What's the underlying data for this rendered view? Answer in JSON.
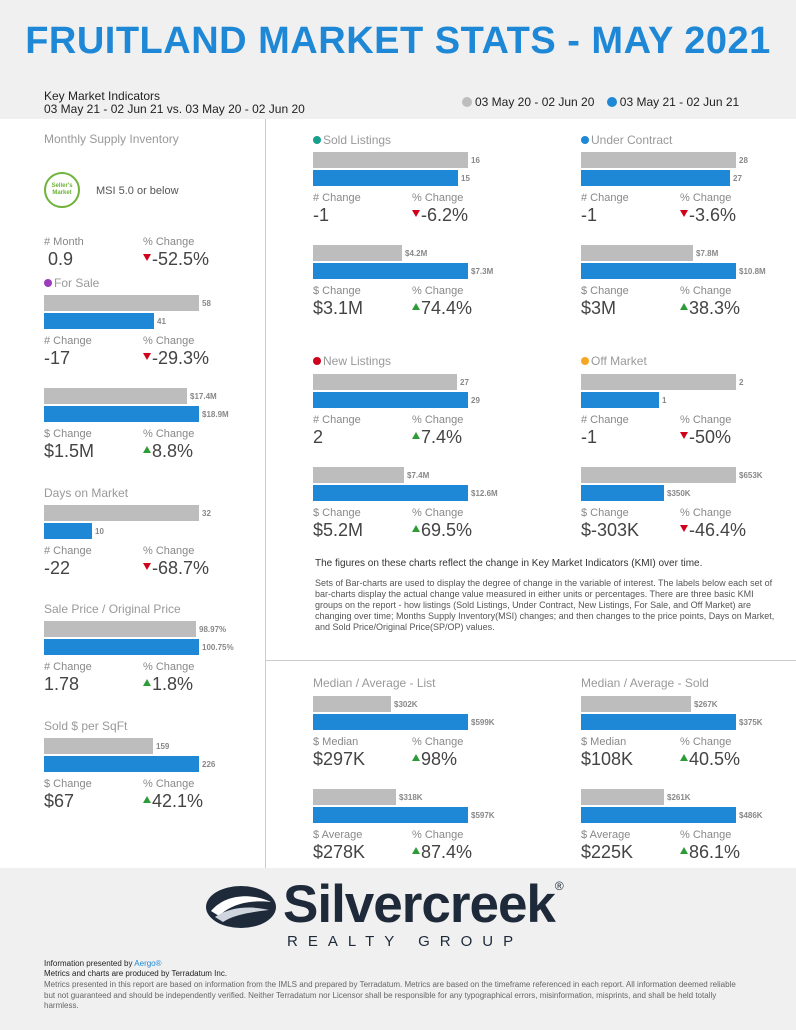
{
  "title": "FRUITLAND MARKET STATS - MAY 2021",
  "header": {
    "kmi_label": "Key Market Indicators",
    "period_compare": "03 May 21 - 02 Jun 21 vs. 03 May 20 - 02 Jun 20",
    "legend_prev": "03 May 20 - 02 Jun 20",
    "legend_curr": "03 May 21 - 02 Jun 21"
  },
  "colors": {
    "prev": "#bdbdbd",
    "curr": "#1e88d6",
    "title": "#1e88d6",
    "down": "#d0021b",
    "up": "#2e9b37"
  },
  "left": {
    "msi": {
      "title": "Monthly Supply Inventory",
      "badge": "Seller's Market",
      "note": "MSI 5.0 or below",
      "l1": "# Month",
      "v1": "0.9",
      "l2": "% Change",
      "v2": "-52.5%"
    },
    "for_sale": {
      "title": "For Sale",
      "dot": "#9b3dbf",
      "prev": 58,
      "curr": 41,
      "prev_label": "58",
      "curr_label": "41",
      "l1": "# Change",
      "v1": "-17",
      "l2": "% Change",
      "v2": "-29.3%"
    },
    "for_sale_val": {
      "prev": 17.4,
      "curr": 18.9,
      "prev_label": "$17.4M",
      "curr_label": "$18.9M",
      "l1": "$ Change",
      "v1": "$1.5M",
      "l2": "% Change",
      "v2": "8.8%"
    },
    "dom": {
      "title": "Days on Market",
      "prev": 32,
      "curr": 10,
      "prev_label": "32",
      "curr_label": "10",
      "l1": "# Change",
      "v1": "-22",
      "l2": "% Change",
      "v2": "-68.7%"
    },
    "sp_op": {
      "title": "Sale Price / Original Price",
      "prev": 98.97,
      "curr": 100.75,
      "prev_label": "98.97%",
      "curr_label": "100.75%",
      "l1": "# Change",
      "v1": "1.78",
      "l2": "% Change",
      "v2": "1.8%"
    },
    "sqft": {
      "title": "Sold $ per SqFt",
      "prev": 159,
      "curr": 226,
      "prev_label": "159",
      "curr_label": "226",
      "l1": "$ Change",
      "v1": "$67",
      "l2": "% Change",
      "v2": "42.1%"
    }
  },
  "sold": {
    "title": "Sold Listings",
    "dot": "#1a9e8c",
    "a": {
      "prev": 16,
      "curr": 15,
      "prev_label": "16",
      "curr_label": "15",
      "l1": "# Change",
      "v1": "-1",
      "l2": "% Change",
      "v2": "-6.2%"
    },
    "b": {
      "prev": 4.2,
      "curr": 7.3,
      "prev_label": "$4.2M",
      "curr_label": "$7.3M",
      "l1": "$ Change",
      "v1": "$3.1M",
      "l2": "% Change",
      "v2": "74.4%"
    }
  },
  "under": {
    "title": "Under Contract",
    "dot": "#1e88d6",
    "a": {
      "prev": 28,
      "curr": 27,
      "prev_label": "28",
      "curr_label": "27",
      "l1": "# Change",
      "v1": "-1",
      "l2": "% Change",
      "v2": "-3.6%"
    },
    "b": {
      "prev": 7.8,
      "curr": 10.8,
      "prev_label": "$7.8M",
      "curr_label": "$10.8M",
      "l1": "$ Change",
      "v1": "$3M",
      "l2": "% Change",
      "v2": "38.3%"
    }
  },
  "newl": {
    "title": "New Listings",
    "dot": "#d0021b",
    "a": {
      "prev": 27,
      "curr": 29,
      "prev_label": "27",
      "curr_label": "29",
      "l1": "# Change",
      "v1": "2",
      "l2": "% Change",
      "v2": "7.4%"
    },
    "b": {
      "prev": 7.4,
      "curr": 12.6,
      "prev_label": "$7.4M",
      "curr_label": "$12.6M",
      "l1": "$ Change",
      "v1": "$5.2M",
      "l2": "% Change",
      "v2": "69.5%"
    }
  },
  "offm": {
    "title": "Off Market",
    "dot": "#f5a623",
    "a": {
      "prev": 2,
      "curr": 1,
      "prev_label": "2",
      "curr_label": "1",
      "l1": "# Change",
      "v1": "-1",
      "l2": "% Change",
      "v2": "-50%"
    },
    "b": {
      "prev": 653,
      "curr": 350,
      "prev_label": "$653K",
      "curr_label": "$350K",
      "l1": "$ Change",
      "v1": "$-303K",
      "l2": "% Change",
      "v2": "-46.4%"
    }
  },
  "notes": {
    "headline": "The figures on these charts reflect the change in Key Market Indicators (KMI) over time.",
    "body": "Sets of Bar-charts are used to display the degree of change in the variable of interest. The labels below each set of bar-charts display the actual change value measured in either units or percentages. There are three basic KMI groups on the report - how listings (Sold Listings, Under Contract, New Listings, For Sale, and Off Market) are changing over time; Months Supply Inventory(MSI) changes; and then changes to the price points, Days on Market, and Sold Price/Original Price(SP/OP) values."
  },
  "list_stats": {
    "title": "Median / Average - List",
    "a": {
      "prev": 302,
      "curr": 599,
      "prev_label": "$302K",
      "curr_label": "$599K",
      "l1": "$ Median",
      "v1": "$297K",
      "l2": "% Change",
      "v2": "98%"
    },
    "b": {
      "prev": 318,
      "curr": 597,
      "prev_label": "$318K",
      "curr_label": "$597K",
      "l1": "$ Average",
      "v1": "$278K",
      "l2": "% Change",
      "v2": "87.4%"
    }
  },
  "sold_stats": {
    "title": "Median / Average - Sold",
    "a": {
      "prev": 267,
      "curr": 375,
      "prev_label": "$267K",
      "curr_label": "$375K",
      "l1": "$ Median",
      "v1": "$108K",
      "l2": "% Change",
      "v2": "40.5%"
    },
    "b": {
      "prev": 261,
      "curr": 486,
      "prev_label": "$261K",
      "curr_label": "$486K",
      "l1": "$ Average",
      "v1": "$225K",
      "l2": "% Change",
      "v2": "86.1%"
    }
  },
  "logo": {
    "name": "Silvercreek",
    "reg": "®",
    "sub": "REALTY GROUP"
  },
  "footer": {
    "presented_prefix": "Information presented by ",
    "presented_brand": "Aergo®",
    "produced": "Metrics and charts are produced by Terradatum Inc.",
    "disclaimer": "Metrics presented in this report are based on information from the IMLS and prepared by Terradatum. Metrics are based on the timeframe referenced in each report. All information deemed reliable but not guaranteed and should be independently verified. Neither Terradatum nor Licensor shall be responsible for any typographical errors, misinformation, misprints, and shall be held totally harmless."
  }
}
